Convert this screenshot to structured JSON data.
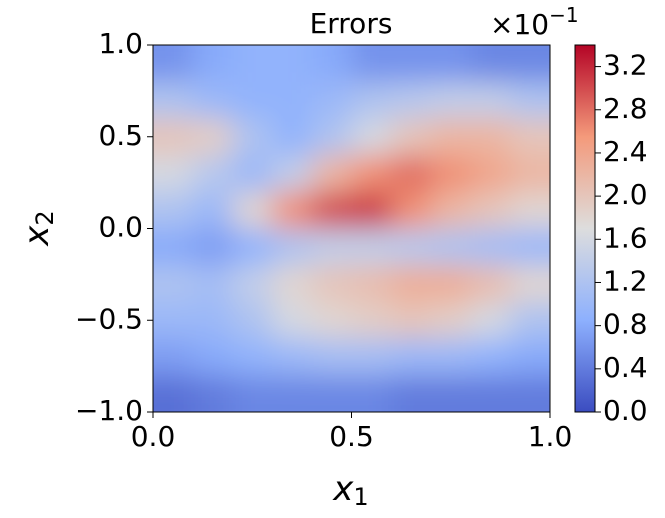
{
  "chart_data": {
    "type": "contour",
    "title": "Errors",
    "xlabel": {
      "text": "x",
      "subscript": "1"
    },
    "ylabel": {
      "text": "x",
      "subscript": "2"
    },
    "x": [
      0.05,
      0.15,
      0.25,
      0.35,
      0.45,
      0.55,
      0.65,
      0.75,
      0.85,
      0.95
    ],
    "y": [
      0.9,
      0.7,
      0.5,
      0.3,
      0.1,
      -0.1,
      -0.3,
      -0.5,
      -0.7,
      -0.9
    ],
    "z": [
      [
        0.6,
        0.8,
        0.9,
        0.9,
        0.8,
        0.6,
        0.6,
        0.6,
        0.5,
        0.5
      ],
      [
        1.2,
        1.0,
        0.9,
        0.9,
        1.0,
        1.2,
        1.3,
        1.4,
        1.4,
        1.2
      ],
      [
        2.0,
        1.9,
        1.2,
        0.9,
        1.2,
        1.6,
        2.0,
        2.2,
        2.2,
        2.0
      ],
      [
        1.6,
        1.3,
        1.0,
        1.4,
        2.2,
        2.6,
        2.8,
        2.6,
        2.4,
        2.2
      ],
      [
        1.2,
        1.0,
        1.8,
        2.6,
        3.0,
        3.1,
        2.6,
        2.2,
        2.0,
        1.8
      ],
      [
        0.8,
        0.7,
        0.9,
        1.2,
        1.4,
        1.4,
        1.3,
        1.2,
        1.1,
        1.0
      ],
      [
        1.2,
        1.1,
        1.4,
        1.8,
        2.0,
        2.1,
        2.3,
        2.3,
        2.1,
        1.8
      ],
      [
        1.0,
        1.0,
        1.2,
        1.6,
        1.8,
        1.9,
        2.0,
        1.9,
        1.6,
        1.2
      ],
      [
        0.7,
        0.8,
        0.9,
        1.0,
        1.1,
        1.1,
        1.0,
        1.0,
        0.9,
        0.8
      ],
      [
        0.3,
        0.4,
        0.5,
        0.5,
        0.5,
        0.5,
        0.4,
        0.4,
        0.4,
        0.4
      ]
    ],
    "colormap": "coolwarm",
    "xlim": [
      0,
      1
    ],
    "ylim": [
      -1,
      1
    ],
    "zlim": [
      0,
      3.4
    ],
    "xticks": [
      {
        "value": 0,
        "label": "0.0"
      },
      {
        "value": 0.5,
        "label": "0.5"
      },
      {
        "value": 1,
        "label": "1.0"
      }
    ],
    "yticks": [
      {
        "value": -1,
        "label": "−1.0"
      },
      {
        "value": -0.5,
        "label": "−0.5"
      },
      {
        "value": 0,
        "label": "0.0"
      },
      {
        "value": 0.5,
        "label": "0.5"
      },
      {
        "value": 1,
        "label": "1.0"
      }
    ],
    "zticks": [
      {
        "value": 0,
        "label": "0.0"
      },
      {
        "value": 0.4,
        "label": "0.4"
      },
      {
        "value": 0.8,
        "label": "0.8"
      },
      {
        "value": 1.2,
        "label": "1.2"
      },
      {
        "value": 1.6,
        "label": "1.6"
      },
      {
        "value": 2,
        "label": "2.0"
      },
      {
        "value": 2.4,
        "label": "2.4"
      },
      {
        "value": 2.8,
        "label": "2.8"
      },
      {
        "value": 3.2,
        "label": "3.2"
      }
    ],
    "colorbar_offset": {
      "base": "×10",
      "exponent": "−1"
    }
  }
}
